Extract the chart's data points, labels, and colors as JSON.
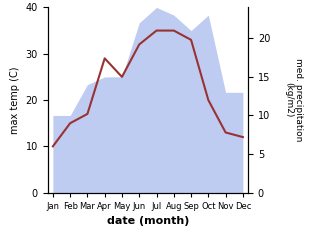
{
  "months": [
    "Jan",
    "Feb",
    "Mar",
    "Apr",
    "May",
    "Jun",
    "Jul",
    "Aug",
    "Sep",
    "Oct",
    "Nov",
    "Dec"
  ],
  "temp": [
    10,
    15,
    17,
    29,
    25,
    32,
    35,
    35,
    33,
    20,
    13,
    12
  ],
  "precip": [
    10,
    10,
    14,
    15,
    15,
    22,
    24,
    23,
    21,
    23,
    13,
    13
  ],
  "temp_ylim": [
    0,
    40
  ],
  "precip_ylim": [
    0,
    24
  ],
  "ylabel_left": "max temp (C)",
  "ylabel_right": "med. precipitation\n(kg/m2)",
  "xlabel": "date (month)",
  "line_color": "#993333",
  "fill_color": "#aabbee",
  "fill_alpha": 0.75,
  "right_yticks": [
    0,
    5,
    10,
    15,
    20
  ],
  "right_yticklabels": [
    "0",
    "5",
    "10",
    "15",
    "20"
  ],
  "left_yticks": [
    0,
    10,
    20,
    30,
    40
  ]
}
